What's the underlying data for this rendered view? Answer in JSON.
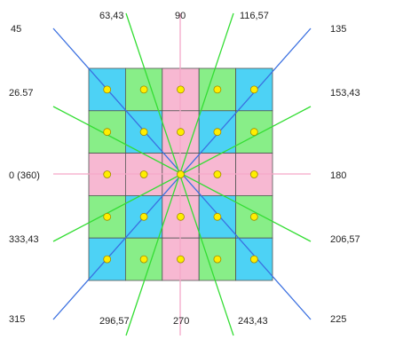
{
  "labels": [
    "45",
    "63,43",
    "90",
    "116,57",
    "135",
    "26.57",
    "153,43",
    "0 (360)",
    "180",
    "333,43",
    "206,57",
    "315",
    "296,57",
    "270",
    "243,43",
    "225"
  ]
}
